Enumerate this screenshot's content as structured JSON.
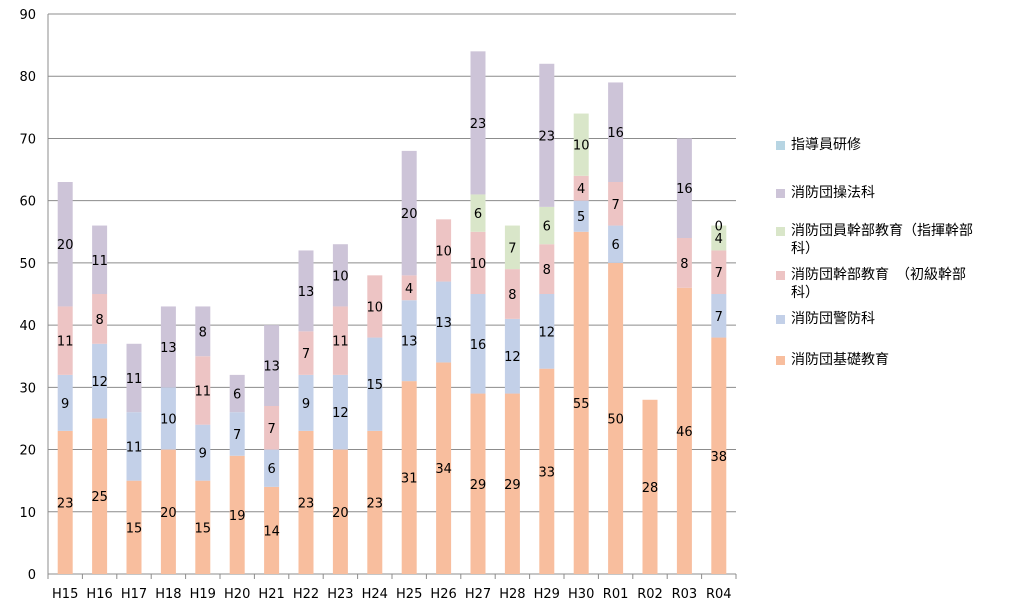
{
  "chart_data": {
    "type": "bar",
    "stacked": true,
    "categories": [
      "H15",
      "H16",
      "H17",
      "H18",
      "H19",
      "H20",
      "H21",
      "H22",
      "H23",
      "H24",
      "H25",
      "H26",
      "H27",
      "H28",
      "H29",
      "H30",
      "R01",
      "R02",
      "R03",
      "R04"
    ],
    "ylim": [
      0,
      90
    ],
    "yticks": [
      0,
      10,
      20,
      30,
      40,
      50,
      60,
      70,
      80,
      90
    ],
    "grid": true,
    "legend_position": "right",
    "series": [
      {
        "name": "消防団基礎教育",
        "color": "#F8BE9E",
        "values": [
          23,
          25,
          15,
          20,
          15,
          19,
          14,
          23,
          20,
          23,
          31,
          34,
          29,
          29,
          33,
          55,
          50,
          28,
          46,
          38
        ]
      },
      {
        "name": "消防団警防科",
        "color": "#C3D0E8",
        "values": [
          9,
          12,
          11,
          10,
          9,
          7,
          6,
          9,
          12,
          15,
          13,
          13,
          16,
          12,
          12,
          5,
          6,
          null,
          null,
          7
        ]
      },
      {
        "name": "消防団幹部教育　（初級幹部科）",
        "color": "#EDC4C4",
        "values": [
          11,
          8,
          null,
          null,
          11,
          null,
          7,
          7,
          11,
          10,
          4,
          10,
          10,
          8,
          8,
          4,
          7,
          null,
          8,
          7
        ]
      },
      {
        "name": "消防団員幹部教育（指揮幹部科）",
        "color": "#D9E6C9",
        "values": [
          null,
          null,
          null,
          null,
          null,
          null,
          null,
          null,
          null,
          null,
          null,
          null,
          6,
          7,
          6,
          10,
          null,
          null,
          null,
          4
        ]
      },
      {
        "name": "消防団操法科",
        "color": "#CDC4D8",
        "values": [
          20,
          11,
          11,
          13,
          8,
          6,
          13,
          13,
          10,
          null,
          20,
          null,
          23,
          null,
          23,
          null,
          16,
          null,
          16,
          null
        ]
      },
      {
        "name": "指導員研修",
        "color": "#B7D5E3",
        "values": [
          null,
          null,
          null,
          null,
          null,
          null,
          null,
          null,
          null,
          null,
          null,
          null,
          null,
          null,
          null,
          null,
          null,
          null,
          null,
          0
        ]
      }
    ],
    "legend_order": [
      5,
      4,
      3,
      2,
      1,
      0
    ],
    "legend_display": [
      "指導員研修",
      "消防団操法科",
      "消防団員幹部教育（指揮幹部\n科）",
      "消防団幹部教育　（初級幹部\n科）",
      "消防団警防科",
      "消防団基礎教育"
    ]
  }
}
